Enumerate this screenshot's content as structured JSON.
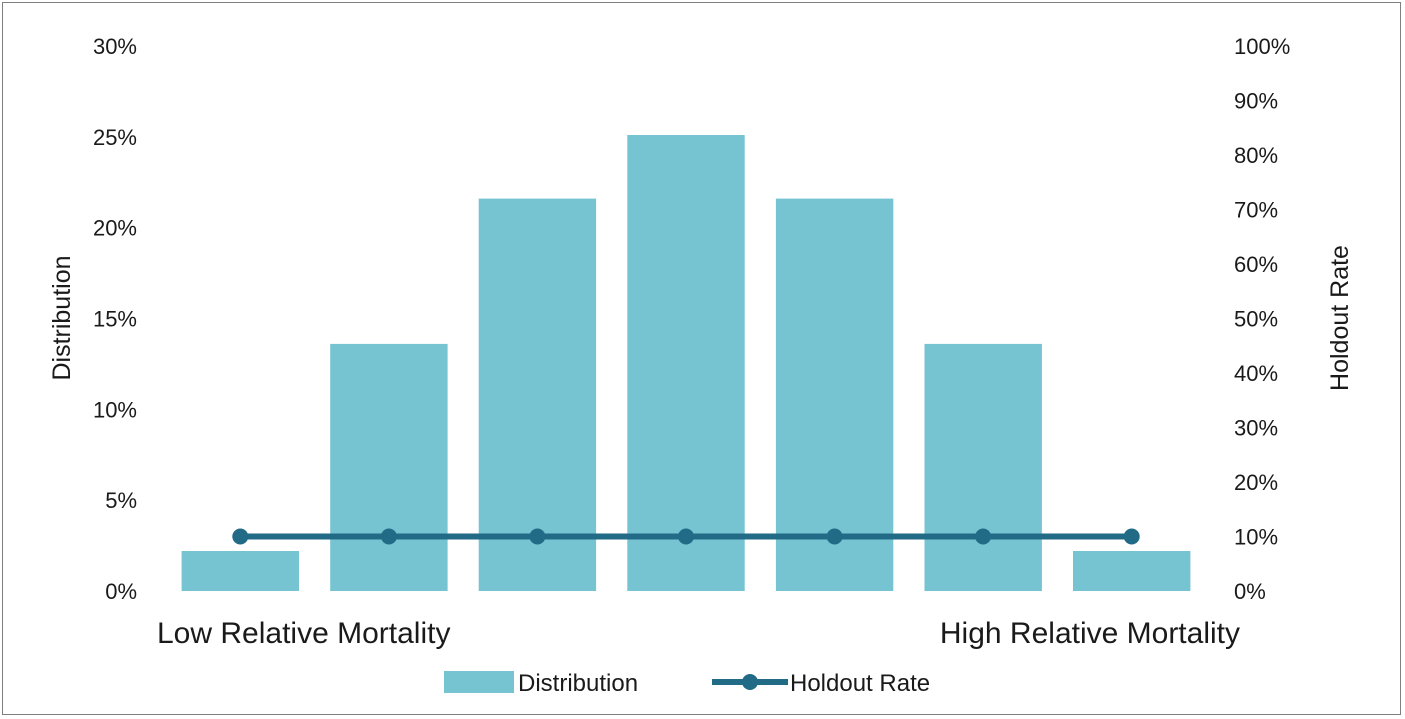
{
  "chart_data": {
    "type": "bar",
    "categories": [
      "Low Relative Mortality",
      "",
      "",
      "",
      "",
      "",
      "High Relative Mortality"
    ],
    "series": [
      {
        "name": "Distribution",
        "type": "bar",
        "axis": "left",
        "values": [
          2.2,
          13.6,
          21.6,
          25.1,
          21.6,
          13.6,
          2.2
        ]
      },
      {
        "name": "Holdout Rate",
        "type": "line",
        "axis": "right",
        "values": [
          10,
          10,
          10,
          10,
          10,
          10,
          10
        ]
      }
    ],
    "ylabel": "Distribution",
    "y2label": "Holdout  Rate",
    "ylim": [
      0,
      30
    ],
    "y2lim": [
      0,
      100
    ],
    "yticks": [
      "0%",
      "5%",
      "10%",
      "15%",
      "20%",
      "25%",
      "30%"
    ],
    "y2ticks": [
      "0%",
      "10%",
      "20%",
      "30%",
      "40%",
      "50%",
      "60%",
      "70%",
      "80%",
      "90%",
      "100%"
    ],
    "xlabels": [
      "Low Relative Mortality",
      "High Relative Mortality"
    ],
    "legend": [
      "Distribution",
      "Holdout Rate"
    ],
    "legend_position": "bottom",
    "grid": false,
    "colors": {
      "bar": "#76c3d2",
      "line": "#226b86"
    }
  }
}
